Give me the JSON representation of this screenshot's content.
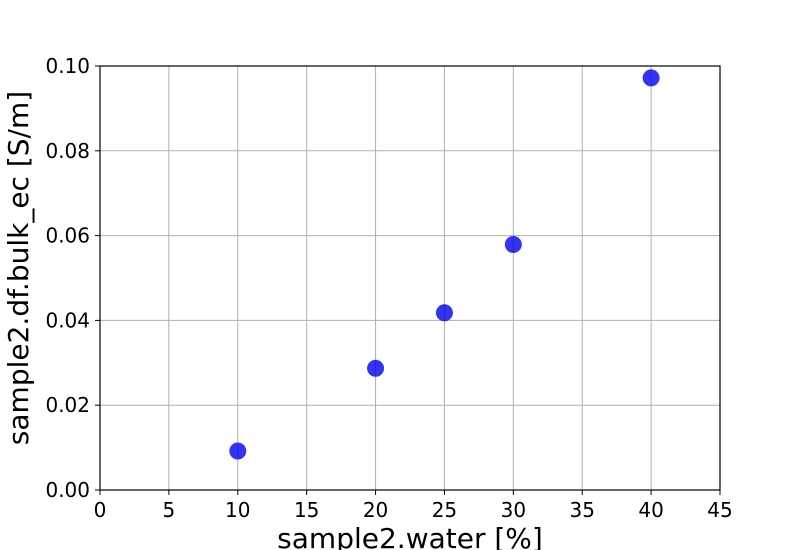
{
  "chart_data": {
    "type": "scatter",
    "xlabel": "sample2.water [%]",
    "ylabel": "sample2.df.bulk_ec [S/m]",
    "xlim": [
      0,
      45
    ],
    "ylim": [
      0,
      0.1
    ],
    "x_ticks": [
      "0",
      "5",
      "10",
      "15",
      "20",
      "25",
      "30",
      "35",
      "40",
      "45"
    ],
    "y_ticks": [
      "0.00",
      "0.02",
      "0.04",
      "0.06",
      "0.08",
      "0.10"
    ],
    "grid": true,
    "series": [
      {
        "x": [
          10,
          20,
          25,
          30,
          40
        ],
        "y": [
          0.0092,
          0.0287,
          0.0418,
          0.0579,
          0.0972
        ],
        "color": "#0000ee"
      }
    ]
  }
}
